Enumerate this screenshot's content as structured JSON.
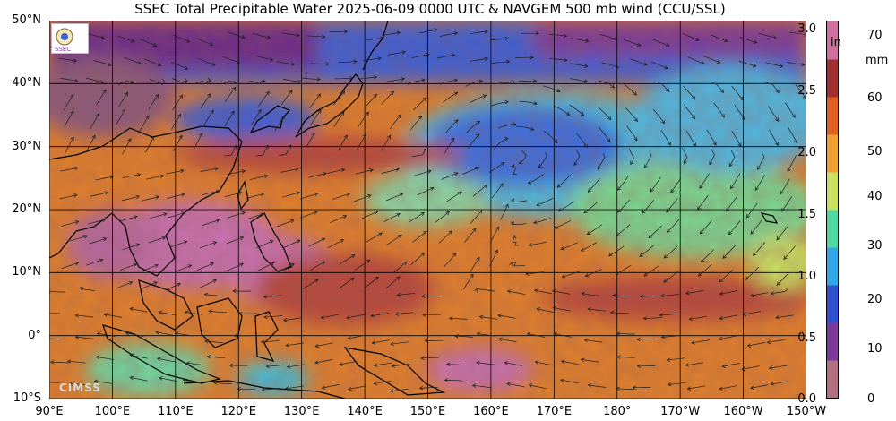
{
  "title": "SSEC Total Precipitable Water  2025-06-09 0000 UTC & NAVGEM 500 mb wind (CCU/SSL)",
  "lat_labels": [
    "50°N",
    "40°N",
    "30°N",
    "20°N",
    "10°N",
    "0°",
    "10°S"
  ],
  "lon_labels": [
    "90°E",
    "100°E",
    "110°E",
    "120°E",
    "130°E",
    "140°E",
    "150°E",
    "160°E",
    "170°E",
    "180°",
    "170°W",
    "160°W",
    "150°W"
  ],
  "colorbar": {
    "unit_in": "in",
    "unit_mm": "mm",
    "in_ticks": [
      "3.0",
      "2.5",
      "2.0",
      "1.5",
      "1.0",
      "0.5",
      "0.0"
    ],
    "mm_ticks": [
      "70",
      "60",
      "50",
      "40",
      "30",
      "20",
      "10",
      "0"
    ],
    "colors": [
      "#b07080",
      "#7a3a9a",
      "#3050d0",
      "#30a8e8",
      "#50d8a0",
      "#c8e060",
      "#f0a030",
      "#e06020",
      "#a03030",
      "#d070a0"
    ]
  },
  "watermark": "CIMSS",
  "logo_text": "SSEC",
  "colors": {
    "dry_purple": "#6a2c8a",
    "dry_blue": "#3a60d8",
    "mid_cyan": "#4cc0e0",
    "mid_green": "#7ad890",
    "moist_orange": "#e0802a",
    "very_moist": "#b84a3a",
    "wettest_pink": "#c872b0",
    "land_outline": "#000000",
    "wind_lines": "#222222"
  }
}
